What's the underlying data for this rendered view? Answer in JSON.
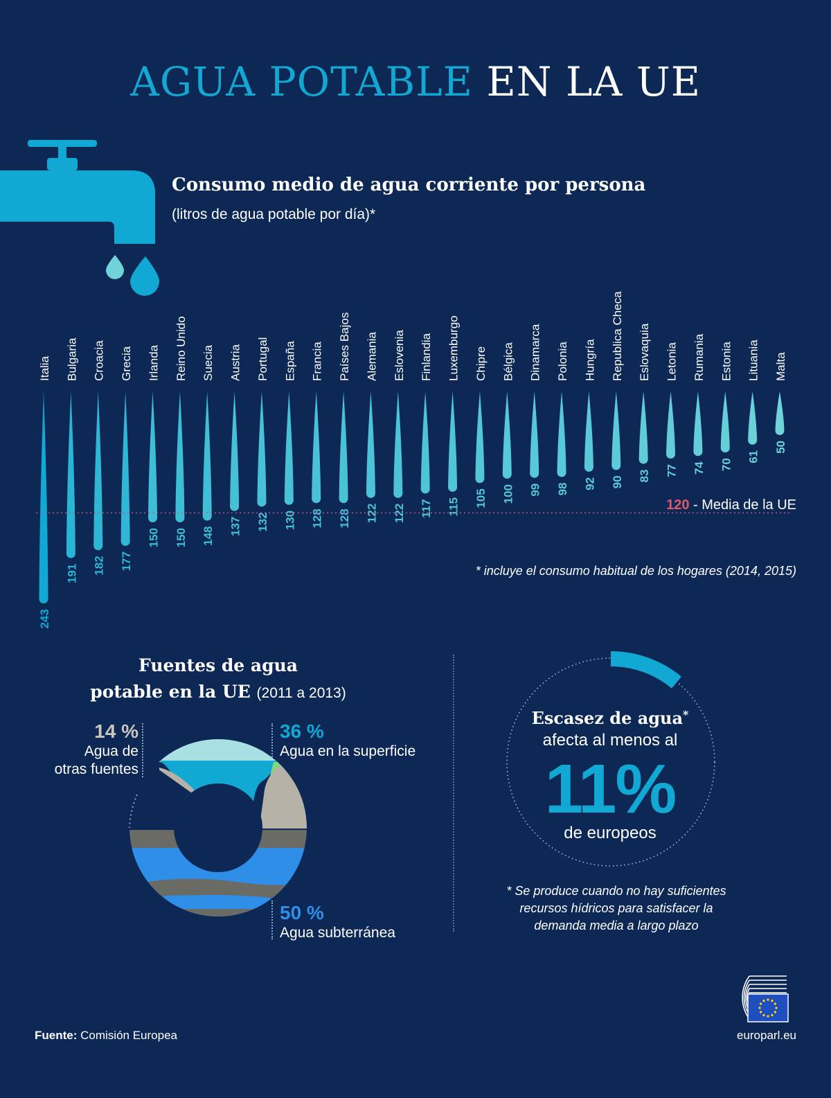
{
  "header": {
    "title_part1": "AGUA POTABLE",
    "title_part2": "EN LA UE"
  },
  "consumption": {
    "title": "Consumo medio de agua corriente por persona",
    "subtitle": "(litros de agua potable por día)*",
    "average_value": "120",
    "average_label": "- Media de la UE",
    "footnote": "* incluye el consumo habitual de los hogares (2014, 2015)"
  },
  "chart_data": [
    {
      "type": "bar",
      "title": "Consumo medio de agua corriente por persona",
      "subtitle": "(litros de agua potable por día)*",
      "categories": [
        "Italia",
        "Bulgaria",
        "Croacia",
        "Grecia",
        "Irlanda",
        "Reino Unido",
        "Suecia",
        "Austria",
        "Portugal",
        "España",
        "Francia",
        "Países Bajos",
        "Alemania",
        "Eslovenia",
        "Finlandia",
        "Luxemburgo",
        "Chipre",
        "Bélgica",
        "Dinamarca",
        "Polonia",
        "Hungría",
        "Republica Checa",
        "Eslovaquia",
        "Letonia",
        "Rumania",
        "Estonia",
        "Lituania",
        "Malta"
      ],
      "values": [
        243,
        191,
        182,
        177,
        150,
        150,
        148,
        137,
        132,
        130,
        128,
        128,
        122,
        122,
        117,
        115,
        105,
        100,
        99,
        98,
        92,
        90,
        83,
        77,
        74,
        70,
        61,
        50
      ],
      "reference_line": {
        "value": 120,
        "label": "Media de la UE"
      }
    },
    {
      "type": "pie",
      "title": "Fuentes de agua potable en la UE (2011 a 2013)",
      "categories": [
        "Agua de otras fuentes",
        "Agua en la superficie",
        "Agua subterránea"
      ],
      "values": [
        14,
        36,
        50
      ]
    }
  ],
  "sources": {
    "title_line1": "Fuentes de agua",
    "title_line2": "potable en la UE",
    "period": "(2011 a 2013)",
    "other": {
      "pct": "14 %",
      "label_line1": "Agua de",
      "label_line2": "otras fuentes"
    },
    "surface": {
      "pct": "36 %",
      "label": "Agua en la superficie"
    },
    "ground": {
      "pct": "50 %",
      "label": "Agua subterránea"
    }
  },
  "scarcity": {
    "head": "Escasez de agua",
    "asterisk": "*",
    "line2": "afecta al menos al",
    "big": "11%",
    "line3": "de europeos",
    "value_pct": 11,
    "footnote_line1": "* Se produce cuando no hay suficientes",
    "footnote_line2": "recursos hídricos para satisfacer la",
    "footnote_line3": "demanda media a largo plazo"
  },
  "footer": {
    "source_label": "Fuente:",
    "source_value": "Comisión Europea",
    "site": "europarl.eu"
  },
  "colors": {
    "background": "#0d2855",
    "accent": "#11a9d3",
    "drop_light": "#6fd3d9",
    "average": "#e0586a",
    "surface": "#a8e0e4",
    "ground": "#2e8ee8",
    "gray": "#6b6b66",
    "sand": "#b6b2a8",
    "green": "#7ed87a"
  },
  "icons": [
    "faucet-icon",
    "water-drop-icon",
    "eu-flag-icon",
    "parliament-hemicycle-icon"
  ]
}
